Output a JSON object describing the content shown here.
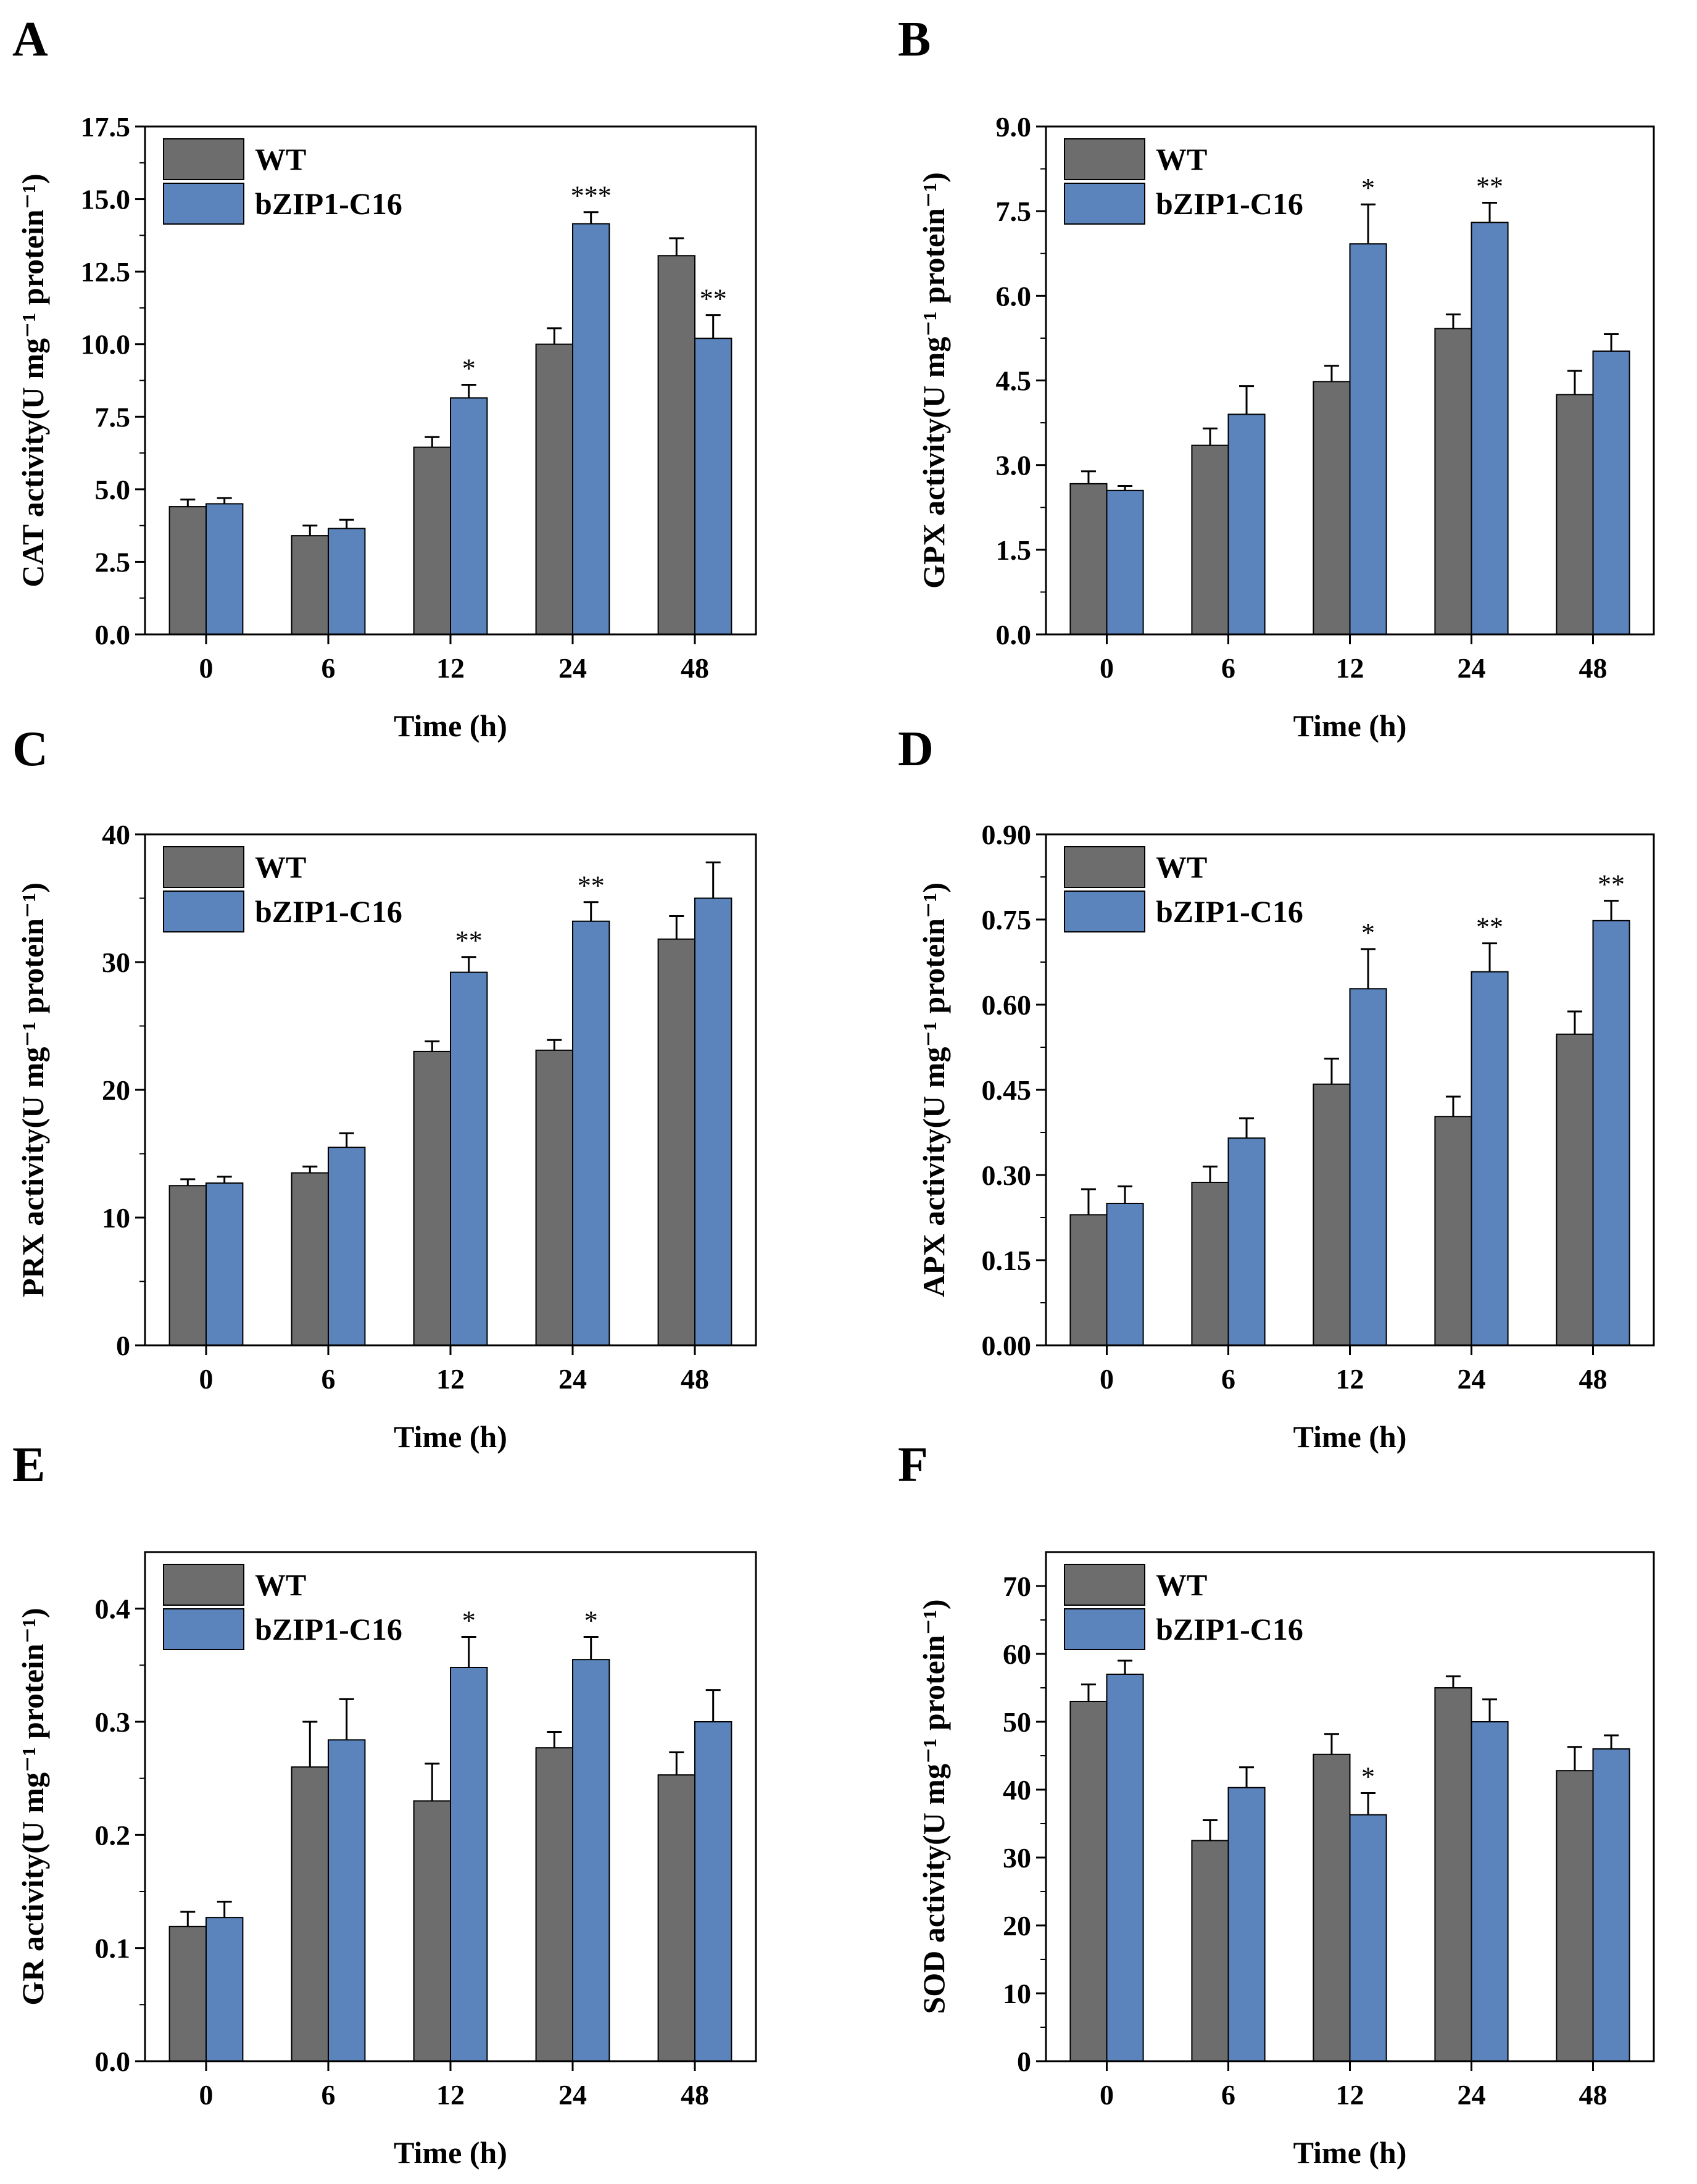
{
  "figure": {
    "colors": {
      "WT": "#6d6d6d",
      "bZIP1-C16": "#5b84bd",
      "axis": "#000000",
      "errorbar": "#000000"
    }
  },
  "chart_data": [
    {
      "panel": "A",
      "type": "bar",
      "categories": [
        "0",
        "6",
        "12",
        "24",
        "48"
      ],
      "xlabel": "Time (h)",
      "ylabel": "CAT activity(U mg⁻¹ protein⁻¹)",
      "ylim": [
        0,
        17.5
      ],
      "yticks": [
        "0.0",
        "2.5",
        "5.0",
        "7.5",
        "10.0",
        "12.5",
        "15.0",
        "17.5"
      ],
      "legend": [
        "WT",
        "bZIP1-C16"
      ],
      "legend_position": "top-left",
      "series": [
        {
          "name": "WT",
          "values": [
            4.4,
            3.4,
            6.45,
            10.0,
            13.05
          ],
          "errors": [
            0.25,
            0.35,
            0.35,
            0.55,
            0.6
          ]
        },
        {
          "name": "bZIP1-C16",
          "values": [
            4.5,
            3.65,
            8.15,
            14.15,
            10.2
          ],
          "errors": [
            0.2,
            0.3,
            0.45,
            0.4,
            0.8
          ],
          "significance": [
            "",
            "",
            "*",
            "***",
            "**"
          ]
        }
      ]
    },
    {
      "panel": "B",
      "type": "bar",
      "categories": [
        "0",
        "6",
        "12",
        "24",
        "48"
      ],
      "xlabel": "Time (h)",
      "ylabel": "GPX activity(U mg⁻¹ protein⁻¹)",
      "ylim": [
        0,
        9.0
      ],
      "yticks": [
        "0.0",
        "1.5",
        "3.0",
        "4.5",
        "6.0",
        "7.5",
        "9.0"
      ],
      "legend": [
        "WT",
        "bZIP1-C16"
      ],
      "legend_position": "top-left",
      "series": [
        {
          "name": "WT",
          "values": [
            2.67,
            3.35,
            4.48,
            5.42,
            4.25
          ],
          "errors": [
            0.22,
            0.3,
            0.28,
            0.25,
            0.42
          ]
        },
        {
          "name": "bZIP1-C16",
          "values": [
            2.55,
            3.9,
            6.92,
            7.3,
            5.02
          ],
          "errors": [
            0.08,
            0.5,
            0.7,
            0.35,
            0.3
          ],
          "significance": [
            "",
            "",
            "*",
            "**",
            ""
          ]
        }
      ]
    },
    {
      "panel": "C",
      "type": "bar",
      "categories": [
        "0",
        "6",
        "12",
        "24",
        "48"
      ],
      "xlabel": "Time (h)",
      "ylabel": "PRX activity(U mg⁻¹ protein⁻¹)",
      "ylim": [
        0,
        40
      ],
      "yticks": [
        "0",
        "10",
        "20",
        "30",
        "40"
      ],
      "legend": [
        "WT",
        "bZIP1-C16"
      ],
      "legend_position": "top-left",
      "series": [
        {
          "name": "WT",
          "values": [
            12.5,
            13.5,
            23.0,
            23.1,
            31.8
          ],
          "errors": [
            0.5,
            0.5,
            0.8,
            0.8,
            1.8
          ]
        },
        {
          "name": "bZIP1-C16",
          "values": [
            12.7,
            15.5,
            29.2,
            33.2,
            35.0
          ],
          "errors": [
            0.5,
            1.1,
            1.2,
            1.5,
            2.8
          ],
          "significance": [
            "",
            "",
            "**",
            "**",
            ""
          ]
        }
      ]
    },
    {
      "panel": "D",
      "type": "bar",
      "categories": [
        "0",
        "6",
        "12",
        "24",
        "48"
      ],
      "xlabel": "Time (h)",
      "ylabel": "APX activity(U mg⁻¹ protein⁻¹)",
      "ylim": [
        0,
        0.9
      ],
      "yticks": [
        "0.00",
        "0.15",
        "0.30",
        "0.45",
        "0.60",
        "0.75",
        "0.90"
      ],
      "legend": [
        "WT",
        "bZIP1-C16"
      ],
      "legend_position": "top-left",
      "series": [
        {
          "name": "WT",
          "values": [
            0.23,
            0.287,
            0.46,
            0.403,
            0.548
          ],
          "errors": [
            0.045,
            0.028,
            0.045,
            0.035,
            0.04
          ]
        },
        {
          "name": "bZIP1-C16",
          "values": [
            0.25,
            0.365,
            0.628,
            0.658,
            0.748
          ],
          "errors": [
            0.03,
            0.035,
            0.07,
            0.05,
            0.035
          ],
          "significance": [
            "",
            "",
            "*",
            "**",
            "**"
          ]
        }
      ]
    },
    {
      "panel": "E",
      "type": "bar",
      "categories": [
        "0",
        "6",
        "12",
        "24",
        "48"
      ],
      "xlabel": "Time (h)",
      "ylabel": "GR activity(U mg⁻¹ protein⁻¹)",
      "ylim": [
        0,
        0.45
      ],
      "yticks": [
        "0.0",
        "0.1",
        "0.2",
        "0.3",
        "0.4"
      ],
      "legend": [
        "WT",
        "bZIP1-C16"
      ],
      "legend_position": "top-left",
      "series": [
        {
          "name": "WT",
          "values": [
            0.119,
            0.26,
            0.23,
            0.277,
            0.253
          ],
          "errors": [
            0.013,
            0.04,
            0.033,
            0.014,
            0.02
          ]
        },
        {
          "name": "bZIP1-C16",
          "values": [
            0.127,
            0.284,
            0.348,
            0.355,
            0.3
          ],
          "errors": [
            0.014,
            0.036,
            0.027,
            0.02,
            0.028
          ],
          "significance": [
            "",
            "",
            "*",
            "*",
            ""
          ]
        }
      ]
    },
    {
      "panel": "F",
      "type": "bar",
      "categories": [
        "0",
        "6",
        "12",
        "24",
        "48"
      ],
      "xlabel": "Time (h)",
      "ylabel": "SOD activity(U mg⁻¹ protein⁻¹)",
      "ylim": [
        0,
        75
      ],
      "yticks": [
        "0",
        "10",
        "20",
        "30",
        "40",
        "50",
        "60",
        "70"
      ],
      "legend": [
        "WT",
        "bZIP1-C16"
      ],
      "legend_position": "top-left",
      "series": [
        {
          "name": "WT",
          "values": [
            53.0,
            32.5,
            45.2,
            55.0,
            42.8
          ],
          "errors": [
            2.5,
            3.0,
            3.0,
            1.7,
            3.5
          ]
        },
        {
          "name": "bZIP1-C16",
          "values": [
            57.0,
            40.3,
            36.3,
            50.0,
            46.0
          ],
          "errors": [
            2.0,
            3.0,
            3.2,
            3.3,
            2.0
          ],
          "significance": [
            "",
            "",
            "*",
            "",
            ""
          ]
        }
      ]
    }
  ]
}
